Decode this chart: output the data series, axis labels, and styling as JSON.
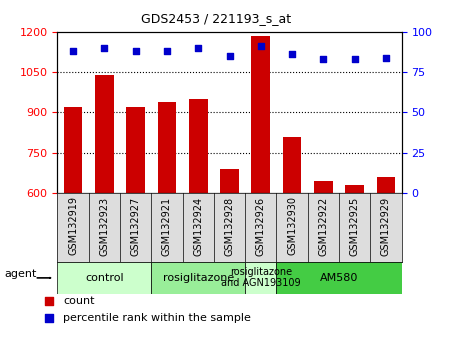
{
  "title": "GDS2453 / 221193_s_at",
  "samples": [
    "GSM132919",
    "GSM132923",
    "GSM132927",
    "GSM132921",
    "GSM132924",
    "GSM132928",
    "GSM132926",
    "GSM132930",
    "GSM132922",
    "GSM132925",
    "GSM132929"
  ],
  "counts": [
    920,
    1040,
    920,
    940,
    950,
    690,
    1185,
    810,
    645,
    630,
    660
  ],
  "percentiles": [
    88,
    90,
    88,
    88,
    90,
    85,
    91,
    86,
    83,
    83,
    84
  ],
  "bar_color": "#cc0000",
  "dot_color": "#0000cc",
  "ylim_left": [
    600,
    1200
  ],
  "ylim_right": [
    0,
    100
  ],
  "yticks_left": [
    600,
    750,
    900,
    1050,
    1200
  ],
  "yticks_right": [
    0,
    25,
    50,
    75,
    100
  ],
  "groups": [
    {
      "label": "control",
      "start": 0,
      "end": 3,
      "color": "#ccffcc"
    },
    {
      "label": "rosiglitazone",
      "start": 3,
      "end": 6,
      "color": "#99ee99"
    },
    {
      "label": "rosiglitazone\nand AGN193109",
      "start": 6,
      "end": 7,
      "color": "#ccffcc"
    },
    {
      "label": "AM580",
      "start": 7,
      "end": 11,
      "color": "#44cc44"
    }
  ],
  "agent_label": "agent",
  "legend_count_label": "count",
  "legend_percentile_label": "percentile rank within the sample",
  "tick_bg_color": "#dddddd",
  "plot_bg_color": "#ffffff"
}
